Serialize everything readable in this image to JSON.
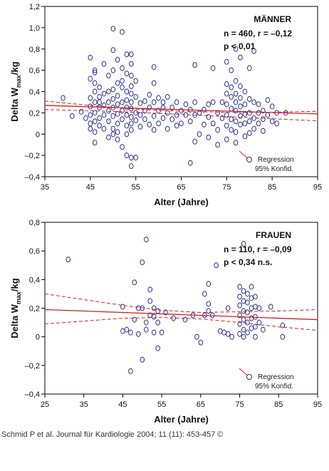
{
  "chart_data": [
    {
      "type": "scatter",
      "xlabel": "Alter (Jahre)",
      "ylabel_main": "Delta W",
      "ylabel_sub": "max",
      "ylabel_unit": "/kg",
      "xlim": [
        35,
        95
      ],
      "ylim": [
        -0.4,
        1.2
      ],
      "xticks": [
        "35",
        "45",
        "55",
        "65",
        "75",
        "85",
        "95"
      ],
      "yticks": [
        "1,2",
        "1,0",
        "0,8",
        "0,6",
        "0,4",
        "0,2",
        "0",
        "–0,2",
        "–0,4"
      ],
      "grid": false,
      "annotations": {
        "group": "MÄNNER",
        "stats1": "n = 460, r = –0,12",
        "stats2": "p < 0,01"
      },
      "legend": {
        "placement": "bottom-right",
        "line1": "Regression",
        "line2": "95% Konfid."
      },
      "regression": {
        "x": [
          35,
          95
        ],
        "y": [
          0.27,
          0.19
        ]
      },
      "ci_upper": {
        "x": [
          35,
          45,
          55,
          65,
          75,
          85,
          95
        ],
        "y": [
          0.31,
          0.27,
          0.235,
          0.215,
          0.205,
          0.205,
          0.215
        ]
      },
      "ci_lower": {
        "x": [
          35,
          45,
          55,
          65,
          75,
          85,
          95
        ],
        "y": [
          0.23,
          0.22,
          0.205,
          0.185,
          0.165,
          0.145,
          0.125
        ]
      },
      "points": [
        [
          39,
          0.34
        ],
        [
          41,
          0.17
        ],
        [
          43,
          0.21
        ],
        [
          44,
          0.15
        ],
        [
          45,
          0.05
        ],
        [
          45,
          0.1
        ],
        [
          45,
          0.18
        ],
        [
          45,
          0.26
        ],
        [
          45,
          0.34
        ],
        [
          45,
          0.52
        ],
        [
          45,
          0.72
        ],
        [
          46,
          0.3
        ],
        [
          46,
          0.4
        ],
        [
          46,
          0.58
        ],
        [
          46,
          0.48
        ],
        [
          46,
          0.2
        ],
        [
          46,
          0.12
        ],
        [
          46,
          0.02
        ],
        [
          46,
          -0.08
        ],
        [
          46,
          0.6
        ],
        [
          47,
          0.25
        ],
        [
          47,
          0.35
        ],
        [
          47,
          0.44
        ],
        [
          47,
          0.15
        ],
        [
          47,
          0.08
        ],
        [
          47,
          0.3
        ],
        [
          48,
          0.18
        ],
        [
          48,
          0.27
        ],
        [
          48,
          0.38
        ],
        [
          48,
          0.05
        ],
        [
          48,
          0.66
        ],
        [
          49,
          0.4
        ],
        [
          49,
          0.22
        ],
        [
          49,
          0.12
        ],
        [
          49,
          0.55
        ],
        [
          49,
          0.3
        ],
        [
          49,
          -0.03
        ],
        [
          50,
          0.99
        ],
        [
          50,
          0.79
        ],
        [
          50,
          0.6
        ],
        [
          50,
          0.42
        ],
        [
          50,
          0.33
        ],
        [
          50,
          0.25
        ],
        [
          50,
          0.17
        ],
        [
          50,
          0.05
        ],
        [
          50,
          0.0
        ],
        [
          51,
          0.7
        ],
        [
          51,
          0.48
        ],
        [
          51,
          0.36
        ],
        [
          51,
          0.28
        ],
        [
          51,
          0.19
        ],
        [
          51,
          0.1
        ],
        [
          51,
          0.02
        ],
        [
          51,
          -0.05
        ],
        [
          52,
          0.96
        ],
        [
          52,
          0.62
        ],
        [
          52,
          0.5
        ],
        [
          52,
          0.44
        ],
        [
          52,
          0.3
        ],
        [
          52,
          0.22
        ],
        [
          52,
          0.14
        ],
        [
          52,
          -0.12
        ],
        [
          53,
          0.75
        ],
        [
          53,
          0.57
        ],
        [
          53,
          0.4
        ],
        [
          53,
          0.32
        ],
        [
          53,
          0.25
        ],
        [
          53,
          0.18
        ],
        [
          53,
          0.08
        ],
        [
          53,
          0.0
        ],
        [
          53,
          -0.2
        ],
        [
          54,
          0.75
        ],
        [
          54,
          0.66
        ],
        [
          54,
          0.55
        ],
        [
          54,
          0.45
        ],
        [
          54,
          0.38
        ],
        [
          54,
          0.3
        ],
        [
          54,
          0.24
        ],
        [
          54,
          0.16
        ],
        [
          54,
          0.1
        ],
        [
          54,
          0.04
        ],
        [
          54,
          -0.3
        ],
        [
          54,
          -0.22
        ],
        [
          55,
          0.5
        ],
        [
          55,
          0.35
        ],
        [
          55,
          0.2
        ],
        [
          55,
          0.13
        ],
        [
          55,
          -0.22
        ],
        [
          56,
          0.29
        ],
        [
          56,
          0.18
        ],
        [
          56,
          0.07
        ],
        [
          57,
          0.31
        ],
        [
          57,
          0.22
        ],
        [
          57,
          0.14
        ],
        [
          58,
          0.25
        ],
        [
          58,
          0.37
        ],
        [
          58,
          0.09
        ],
        [
          59,
          0.63
        ],
        [
          59,
          0.48
        ],
        [
          59,
          0.3
        ],
        [
          59,
          0.17
        ],
        [
          59,
          0.04
        ],
        [
          60,
          0.34
        ],
        [
          60,
          0.22
        ],
        [
          60,
          0.1
        ],
        [
          61,
          0.25
        ],
        [
          61,
          0.15
        ],
        [
          61,
          0.3
        ],
        [
          62,
          0.2
        ],
        [
          62,
          0.05
        ],
        [
          62,
          0.35
        ],
        [
          63,
          0.25
        ],
        [
          63,
          0.14
        ],
        [
          64,
          0.3
        ],
        [
          64,
          0.18
        ],
        [
          64,
          0.08
        ],
        [
          65,
          0.22
        ],
        [
          65,
          0.1
        ],
        [
          66,
          0.18
        ],
        [
          66,
          0.28
        ],
        [
          67,
          -0.27
        ],
        [
          67,
          0.12
        ],
        [
          67,
          0.23
        ],
        [
          68,
          0.65
        ],
        [
          68,
          0.3
        ],
        [
          68,
          0.18
        ],
        [
          68,
          -0.07
        ],
        [
          69,
          0.0
        ],
        [
          69,
          0.2
        ],
        [
          70,
          0.09
        ],
        [
          70,
          0.23
        ],
        [
          71,
          0.28
        ],
        [
          71,
          0.16
        ],
        [
          71,
          -0.03
        ],
        [
          72,
          0.62
        ],
        [
          72,
          0.3
        ],
        [
          72,
          0.1
        ],
        [
          73,
          0.2
        ],
        [
          73,
          0.04
        ],
        [
          73,
          -0.1
        ],
        [
          74,
          0.3
        ],
        [
          74,
          0.15
        ],
        [
          75,
          0.68
        ],
        [
          75,
          0.47
        ],
        [
          75,
          0.38
        ],
        [
          75,
          0.28
        ],
        [
          75,
          0.18
        ],
        [
          75,
          0.08
        ],
        [
          75,
          -0.05
        ],
        [
          76,
          0.6
        ],
        [
          76,
          0.44
        ],
        [
          76,
          0.35
        ],
        [
          76,
          0.24
        ],
        [
          76,
          0.14
        ],
        [
          76,
          0.04
        ],
        [
          77,
          0.8
        ],
        [
          77,
          0.5
        ],
        [
          77,
          0.38
        ],
        [
          77,
          0.3
        ],
        [
          77,
          0.22
        ],
        [
          77,
          0.12
        ],
        [
          77,
          0.02
        ],
        [
          77,
          -0.08
        ],
        [
          78,
          0.72
        ],
        [
          78,
          0.45
        ],
        [
          78,
          0.34
        ],
        [
          78,
          0.26
        ],
        [
          78,
          0.17
        ],
        [
          78,
          0.09
        ],
        [
          79,
          0.4
        ],
        [
          79,
          0.28
        ],
        [
          79,
          0.19
        ],
        [
          79,
          0.1
        ],
        [
          79,
          -0.02
        ],
        [
          80,
          0.62
        ],
        [
          80,
          0.33
        ],
        [
          80,
          0.2
        ],
        [
          80,
          0.12
        ],
        [
          80,
          0.01
        ],
        [
          81,
          0.78
        ],
        [
          81,
          0.3
        ],
        [
          81,
          0.15
        ],
        [
          81,
          0.05
        ],
        [
          82,
          0.28
        ],
        [
          82,
          0.2
        ],
        [
          82,
          0.1
        ],
        [
          83,
          0.22
        ],
        [
          83,
          0.14
        ],
        [
          83,
          0.03
        ],
        [
          84,
          0.32
        ],
        [
          84,
          0.18
        ],
        [
          85,
          0.26
        ],
        [
          85,
          0.12
        ],
        [
          86,
          0.2
        ],
        [
          86,
          0.1
        ],
        [
          88,
          0.2
        ]
      ]
    },
    {
      "type": "scatter",
      "xlabel": "Alter (Jahre)",
      "ylabel_main": "Delta W",
      "ylabel_sub": "max",
      "ylabel_unit": "/kg",
      "xlim": [
        25,
        95
      ],
      "ylim": [
        -0.4,
        0.8
      ],
      "xticks": [
        "25",
        "35",
        "45",
        "55",
        "65",
        "75",
        "85",
        "95"
      ],
      "yticks": [
        "0,8",
        "0,6",
        "0,4",
        "0,2",
        "0",
        "–0,2",
        "–0,4"
      ],
      "grid": false,
      "annotations": {
        "group": "FRAUEN",
        "stats1": "n = 110, r = –0,09",
        "stats2": "p < 0,34  n.s."
      },
      "legend": {
        "placement": "bottom-right",
        "line1": "Regression",
        "line2": "95% Konfid."
      },
      "regression": {
        "x": [
          25,
          95
        ],
        "y": [
          0.19,
          0.12
        ]
      },
      "ci_upper": {
        "x": [
          25,
          35,
          45,
          55,
          65,
          75,
          85,
          95
        ],
        "y": [
          0.3,
          0.26,
          0.22,
          0.185,
          0.17,
          0.175,
          0.18,
          0.19
        ]
      },
      "ci_lower": {
        "x": [
          25,
          35,
          45,
          55,
          65,
          75,
          85,
          95
        ],
        "y": [
          0.09,
          0.11,
          0.13,
          0.135,
          0.125,
          0.1,
          0.07,
          0.045
        ]
      },
      "points": [
        [
          31,
          0.54
        ],
        [
          45,
          0.04
        ],
        [
          45,
          0.21
        ],
        [
          46,
          0.05
        ],
        [
          47,
          -0.24
        ],
        [
          47,
          0.03
        ],
        [
          48,
          0.38
        ],
        [
          48,
          0.12
        ],
        [
          49,
          0.02
        ],
        [
          49,
          0.2
        ],
        [
          50,
          0.52
        ],
        [
          50,
          0.2
        ],
        [
          50,
          -0.16
        ],
        [
          51,
          0.68
        ],
        [
          51,
          0.1
        ],
        [
          51,
          0.05
        ],
        [
          52,
          0.33
        ],
        [
          52,
          0.25
        ],
        [
          52,
          0.15
        ],
        [
          53,
          0.2
        ],
        [
          53,
          0.14
        ],
        [
          53,
          0.03
        ],
        [
          54,
          -0.08
        ],
        [
          54,
          0.18
        ],
        [
          54,
          0.1
        ],
        [
          55,
          0.03
        ],
        [
          56,
          0.17
        ],
        [
          58,
          0.13
        ],
        [
          61,
          0.12
        ],
        [
          63,
          0.15
        ],
        [
          64,
          0.0
        ],
        [
          65,
          -0.04
        ],
        [
          66,
          0.15
        ],
        [
          66,
          0.3
        ],
        [
          67,
          0.37
        ],
        [
          67,
          0.23
        ],
        [
          67,
          0.18
        ],
        [
          68,
          0.15
        ],
        [
          69,
          0.5
        ],
        [
          70,
          0.04
        ],
        [
          71,
          0.03
        ],
        [
          72,
          0.2
        ],
        [
          72,
          0.02
        ],
        [
          73,
          0.0
        ],
        [
          75,
          0.35
        ],
        [
          75,
          0.28
        ],
        [
          75,
          0.22
        ],
        [
          75,
          0.15
        ],
        [
          75,
          0.09
        ],
        [
          75,
          0.02
        ],
        [
          76,
          0.65
        ],
        [
          76,
          0.32
        ],
        [
          76,
          0.25
        ],
        [
          76,
          0.18
        ],
        [
          76,
          0.12
        ],
        [
          76,
          0.05
        ],
        [
          76,
          0.0
        ],
        [
          77,
          0.3
        ],
        [
          77,
          0.24
        ],
        [
          77,
          0.17
        ],
        [
          77,
          0.1
        ],
        [
          77,
          0.03
        ],
        [
          78,
          0.35
        ],
        [
          78,
          0.27
        ],
        [
          78,
          0.2
        ],
        [
          78,
          0.13
        ],
        [
          78,
          0.06
        ],
        [
          79,
          0.28
        ],
        [
          79,
          0.21
        ],
        [
          79,
          0.14
        ],
        [
          79,
          0.07
        ],
        [
          79,
          0.0
        ],
        [
          80,
          0.2
        ],
        [
          80,
          0.1
        ],
        [
          81,
          0.05
        ],
        [
          83,
          0.21
        ],
        [
          86,
          0.08
        ],
        [
          86,
          0.0
        ]
      ]
    }
  ],
  "citation": "Schmid P et al. Journal für Kardiologie 2004; 11 (11): 453-457 ©",
  "colors": {
    "point": "#2b2f8c",
    "regression": "#d42020",
    "frame": "#000000"
  }
}
